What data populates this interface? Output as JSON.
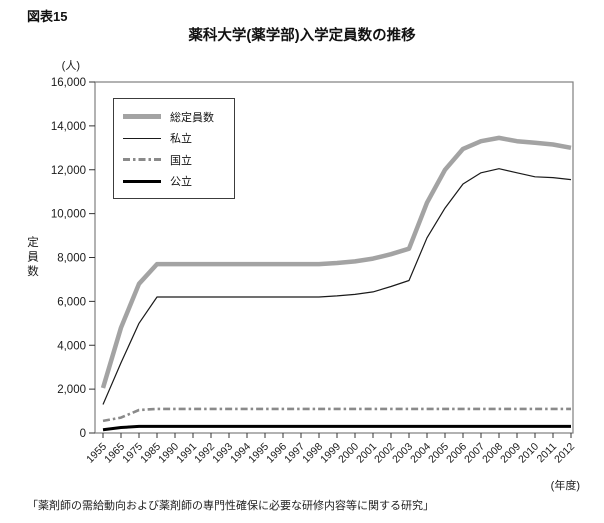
{
  "figure_label": "図表15",
  "title": "薬科大学(薬学部)入学定員数の推移",
  "footer": "「薬剤師の需給動向および薬剤師の専門性確保に必要な研修内容等に関する研究」",
  "y_axis": {
    "unit": "(人)",
    "title": "定員数",
    "min": 0,
    "max": 16000,
    "step": 2000,
    "tick_labels": [
      "0",
      "2,000",
      "4,000",
      "6,000",
      "8,000",
      "10,000",
      "12,000",
      "14,000",
      "16,000"
    ]
  },
  "x_axis": {
    "unit": "(年度)"
  },
  "colors": {
    "total_line": "#a3a3a3",
    "private_line": "#1a1a1a",
    "national_line": "#8a8a8a",
    "public_line": "#000000",
    "plot_border": "#7f7f7f",
    "tick": "#333333"
  },
  "chart_data": {
    "type": "line",
    "title": "薬科大学(薬学部)入学定員数の推移",
    "xlabel": "(年度)",
    "ylabel": "定員数",
    "y_unit": "人",
    "ylim": [
      0,
      16000
    ],
    "y_step": 2000,
    "grid": false,
    "legend_position": "top-left",
    "categories": [
      "1955",
      "1965",
      "1975",
      "1985",
      "1990",
      "1991",
      "1992",
      "1993",
      "1994",
      "1995",
      "1996",
      "1997",
      "1998",
      "1999",
      "2000",
      "2001",
      "2002",
      "2003",
      "2004",
      "2005",
      "2006",
      "2007",
      "2008",
      "2009",
      "2010",
      "2011",
      "2012"
    ],
    "series": [
      {
        "name": "総定員数",
        "color": "#a3a3a3",
        "stroke_width": 4.5,
        "dash": null,
        "values": [
          2050,
          4800,
          6800,
          7700,
          7700,
          7700,
          7700,
          7700,
          7700,
          7700,
          7700,
          7700,
          7700,
          7750,
          7820,
          7950,
          8150,
          8400,
          10500,
          12000,
          12950,
          13300,
          13450,
          13300,
          13230,
          13150,
          13000
        ]
      },
      {
        "name": "私立",
        "color": "#1a1a1a",
        "stroke_width": 1.2,
        "dash": null,
        "values": [
          1300,
          3200,
          5000,
          6200,
          6200,
          6200,
          6200,
          6200,
          6200,
          6200,
          6200,
          6200,
          6200,
          6250,
          6320,
          6430,
          6680,
          6950,
          8900,
          10250,
          11350,
          11860,
          12050,
          11860,
          11680,
          11640,
          11550
        ]
      },
      {
        "name": "国立",
        "color": "#8a8a8a",
        "stroke_width": 2.6,
        "dash": "dashdot",
        "values": [
          550,
          700,
          1050,
          1100,
          1100,
          1100,
          1100,
          1100,
          1100,
          1100,
          1100,
          1100,
          1100,
          1100,
          1100,
          1100,
          1100,
          1100,
          1100,
          1100,
          1100,
          1100,
          1100,
          1100,
          1100,
          1100,
          1100
        ]
      },
      {
        "name": "公立",
        "color": "#000000",
        "stroke_width": 3,
        "dash": null,
        "values": [
          150,
          250,
          300,
          300,
          300,
          300,
          300,
          300,
          300,
          300,
          300,
          300,
          300,
          300,
          300,
          300,
          300,
          300,
          300,
          300,
          300,
          300,
          300,
          300,
          300,
          300,
          300
        ]
      }
    ]
  }
}
